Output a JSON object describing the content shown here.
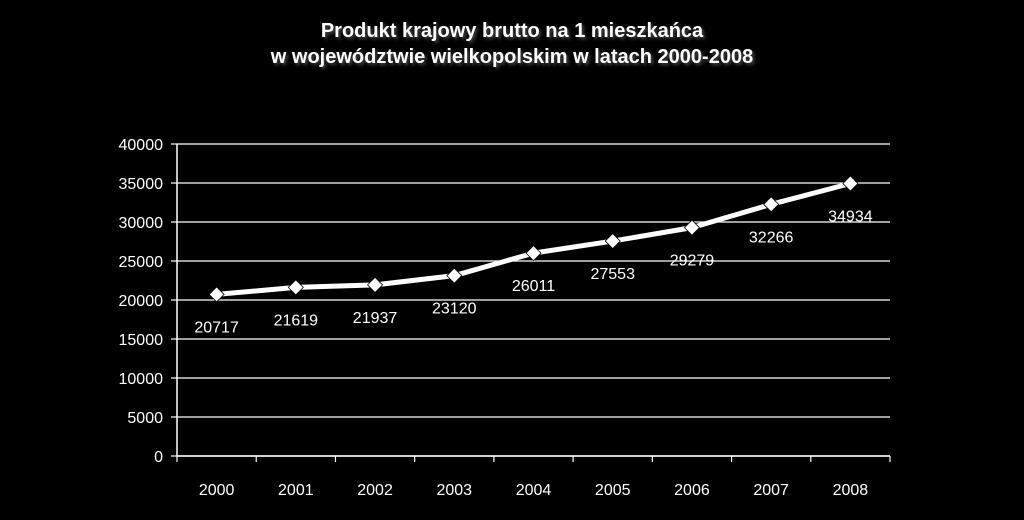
{
  "chart_data": {
    "type": "line",
    "title_line1": "Produkt krajowy brutto na 1 mieszkańca",
    "title_line2": "w województwie wielkopolskim w latach 2000-2008",
    "xlabel": "",
    "ylabel": "",
    "categories": [
      "2000",
      "2001",
      "2002",
      "2003",
      "2004",
      "2005",
      "2006",
      "2007",
      "2008"
    ],
    "series": [
      {
        "values": [
          20717,
          21619,
          21937,
          23120,
          26011,
          27553,
          29279,
          32266,
          34934
        ]
      }
    ],
    "ylim": [
      0,
      40000
    ],
    "yticks": [
      "0",
      "5000",
      "10000",
      "15000",
      "20000",
      "25000",
      "30000",
      "35000",
      "40000"
    ],
    "grid": true,
    "legend": "none",
    "colors": {
      "background": "#000000",
      "line": "#ffffff",
      "grid": "#ffffff",
      "text": "#ffffff"
    }
  }
}
